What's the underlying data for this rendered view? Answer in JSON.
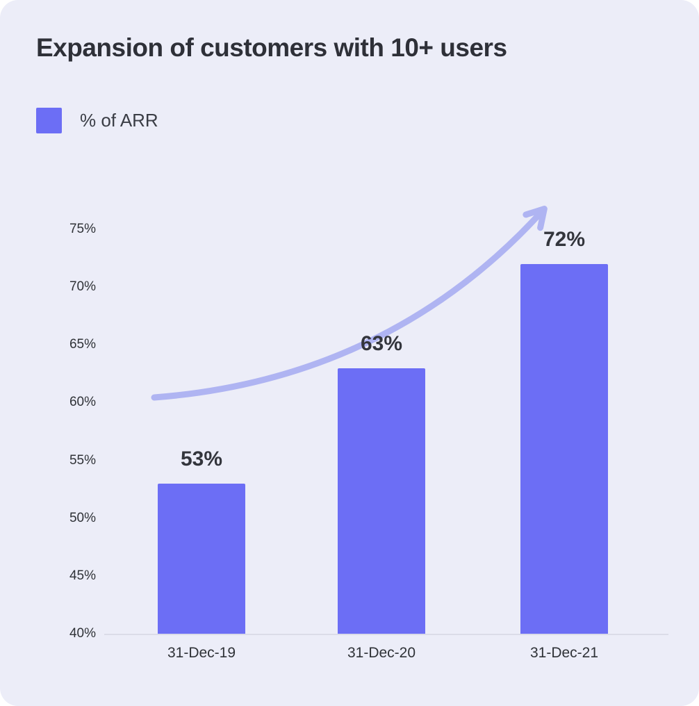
{
  "card": {
    "title": "Expansion of customers with 10+ users"
  },
  "legend": {
    "label": "% of ARR",
    "swatch_color": "#6C6EF5"
  },
  "chart_data": {
    "type": "bar",
    "title": "Expansion of customers with 10+ users",
    "categories": [
      "31-Dec-19",
      "31-Dec-20",
      "31-Dec-21"
    ],
    "series": [
      {
        "name": "% of ARR",
        "values": [
          53,
          63,
          72
        ]
      }
    ],
    "value_labels": [
      "53%",
      "63%",
      "72%"
    ],
    "yticks": [
      40,
      45,
      50,
      55,
      60,
      65,
      70,
      75
    ],
    "ytick_labels": [
      "40%",
      "45%",
      "50%",
      "55%",
      "60%",
      "65%",
      "70%",
      "75%"
    ],
    "ylim": [
      40,
      75
    ],
    "xlabel": "",
    "ylabel": "",
    "grid": false,
    "legend_position": "top-left",
    "bar_color": "#6C6EF5",
    "annotation": "upward-growth-arrow",
    "annotation_color": "#AFB4F2",
    "background_color": "#ECEDF8"
  }
}
